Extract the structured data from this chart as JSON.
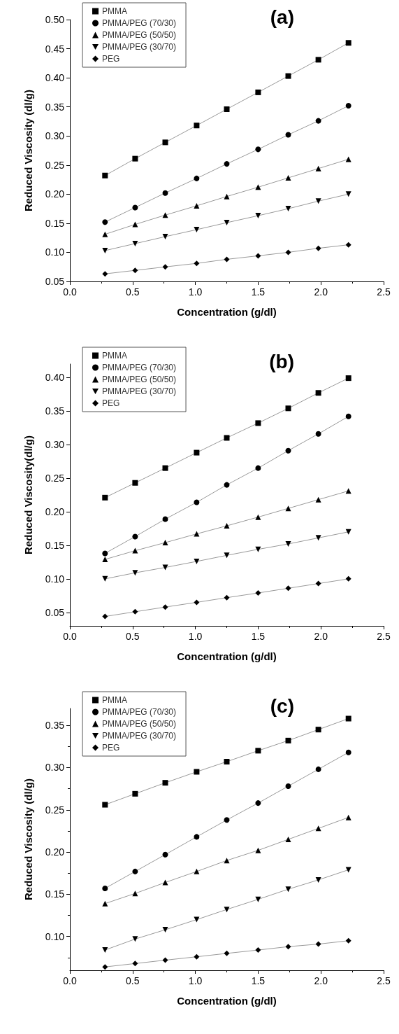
{
  "chart_data": [
    {
      "type": "line",
      "annotations": [
        "(a)"
      ],
      "xlabel": "Concentration (g/dl)",
      "ylabel": "Reduced Viscosity (dl/g)",
      "xlim": [
        0,
        2.5
      ],
      "xticks": [
        {
          "value": 0,
          "label": "0.0"
        },
        {
          "value": 0.5,
          "label": "0.5"
        },
        {
          "value": 1,
          "label": "1.0"
        },
        {
          "value": 1.5,
          "label": "1.5"
        },
        {
          "value": 2,
          "label": "2.0"
        },
        {
          "value": 2.5,
          "label": "2.5"
        }
      ],
      "ylim": [
        0.05,
        0.5
      ],
      "yticks": [
        {
          "value": 0.05,
          "label": "0.05"
        },
        {
          "value": 0.1,
          "label": "0.10"
        },
        {
          "value": 0.15,
          "label": "0.15"
        },
        {
          "value": 0.2,
          "label": "0.20"
        },
        {
          "value": 0.25,
          "label": "0.25"
        },
        {
          "value": 0.3,
          "label": "0.30"
        },
        {
          "value": 0.35,
          "label": "0.35"
        },
        {
          "value": 0.4,
          "label": "0.40"
        },
        {
          "value": 0.45,
          "label": "0.45"
        },
        {
          "value": 0.5,
          "label": "0.50"
        }
      ],
      "legend": "top left",
      "grid": false,
      "x": [
        0.28,
        0.52,
        0.76,
        1.01,
        1.25,
        1.5,
        1.74,
        1.98,
        2.22
      ],
      "series": [
        {
          "name": "PMMA",
          "color": "#000000",
          "marker": "square",
          "values": [
            0.232,
            0.261,
            0.289,
            0.318,
            0.346,
            0.375,
            0.403,
            0.431,
            0.46
          ]
        },
        {
          "name": "PMMA/PEG (70/30)",
          "color": "#000000",
          "marker": "circle",
          "values": [
            0.152,
            0.177,
            0.202,
            0.227,
            0.252,
            0.277,
            0.302,
            0.326,
            0.352
          ]
        },
        {
          "name": "PMMA/PEG (50/50)",
          "color": "#000000",
          "marker": "triangle",
          "values": [
            0.131,
            0.148,
            0.164,
            0.18,
            0.196,
            0.212,
            0.228,
            0.244,
            0.26
          ]
        },
        {
          "name": "PMMA/PEG (30/70)",
          "color": "#000000",
          "marker": "triangle-down",
          "values": [
            0.103,
            0.115,
            0.127,
            0.139,
            0.151,
            0.163,
            0.175,
            0.188,
            0.2
          ]
        },
        {
          "name": "PEG",
          "color": "#000000",
          "marker": "diamond",
          "values": [
            0.063,
            0.069,
            0.075,
            0.081,
            0.088,
            0.094,
            0.1,
            0.107,
            0.113
          ]
        }
      ]
    },
    {
      "type": "line",
      "annotations": [
        "(b)"
      ],
      "xlabel": "Concentration (g/dl)",
      "ylabel": "Reduced Viscosity(dl/g)",
      "xlim": [
        0,
        2.5
      ],
      "xticks": [
        {
          "value": 0,
          "label": "0.0"
        },
        {
          "value": 0.5,
          "label": "0.5"
        },
        {
          "value": 1,
          "label": "1.0"
        },
        {
          "value": 1.5,
          "label": "1.5"
        },
        {
          "value": 2,
          "label": "2.0"
        },
        {
          "value": 2.5,
          "label": "2.5"
        }
      ],
      "ylim": [
        0.03,
        0.42
      ],
      "yticks": [
        {
          "value": 0.05,
          "label": "0.05"
        },
        {
          "value": 0.1,
          "label": "0.10"
        },
        {
          "value": 0.15,
          "label": "0.15"
        },
        {
          "value": 0.2,
          "label": "0.20"
        },
        {
          "value": 0.25,
          "label": "0.25"
        },
        {
          "value": 0.3,
          "label": "0.30"
        },
        {
          "value": 0.35,
          "label": "0.35"
        },
        {
          "value": 0.4,
          "label": "0.40"
        }
      ],
      "legend": "top left",
      "grid": false,
      "x": [
        0.28,
        0.52,
        0.76,
        1.01,
        1.25,
        1.5,
        1.74,
        1.98,
        2.22
      ],
      "series": [
        {
          "name": "PMMA",
          "color": "#000000",
          "marker": "square",
          "values": [
            0.221,
            0.243,
            0.265,
            0.288,
            0.31,
            0.332,
            0.354,
            0.377,
            0.399
          ]
        },
        {
          "name": "PMMA/PEG (70/30)",
          "color": "#000000",
          "marker": "circle",
          "values": [
            0.138,
            0.163,
            0.189,
            0.214,
            0.24,
            0.265,
            0.291,
            0.316,
            0.342
          ]
        },
        {
          "name": "PMMA/PEG (50/50)",
          "color": "#000000",
          "marker": "triangle",
          "values": [
            0.129,
            0.142,
            0.154,
            0.167,
            0.179,
            0.192,
            0.205,
            0.218,
            0.231
          ]
        },
        {
          "name": "PMMA/PEG (30/70)",
          "color": "#000000",
          "marker": "triangle-down",
          "values": [
            0.1,
            0.109,
            0.117,
            0.126,
            0.135,
            0.144,
            0.152,
            0.161,
            0.17
          ]
        },
        {
          "name": "PEG",
          "color": "#000000",
          "marker": "diamond",
          "values": [
            0.044,
            0.051,
            0.058,
            0.065,
            0.072,
            0.079,
            0.086,
            0.093,
            0.1
          ]
        }
      ]
    },
    {
      "type": "line",
      "annotations": [
        "(c)"
      ],
      "xlabel": "Concentration (g/dl)",
      "ylabel": "Reduced Viscosity (dl/g)",
      "xlim": [
        0,
        2.5
      ],
      "xticks": [
        {
          "value": 0,
          "label": "0.0"
        },
        {
          "value": 0.5,
          "label": "0.5"
        },
        {
          "value": 1,
          "label": "1.0"
        },
        {
          "value": 1.5,
          "label": "1.5"
        },
        {
          "value": 2,
          "label": "2.0"
        },
        {
          "value": 2.5,
          "label": "2.5"
        }
      ],
      "ylim": [
        0.06,
        0.37
      ],
      "yticks": [
        {
          "value": 0.1,
          "label": "0.10"
        },
        {
          "value": 0.15,
          "label": "0.15"
        },
        {
          "value": 0.2,
          "label": "0.20"
        },
        {
          "value": 0.25,
          "label": "0.25"
        },
        {
          "value": 0.3,
          "label": "0.30"
        },
        {
          "value": 0.35,
          "label": "0.35"
        }
      ],
      "legend": "top left",
      "grid": false,
      "x": [
        0.28,
        0.52,
        0.76,
        1.01,
        1.25,
        1.5,
        1.74,
        1.98,
        2.22
      ],
      "series": [
        {
          "name": "PMMA",
          "color": "#000000",
          "marker": "square",
          "values": [
            0.256,
            0.269,
            0.282,
            0.295,
            0.307,
            0.32,
            0.332,
            0.345,
            0.358
          ]
        },
        {
          "name": "PMMA/PEG (70/30)",
          "color": "#000000",
          "marker": "circle",
          "values": [
            0.157,
            0.177,
            0.197,
            0.218,
            0.238,
            0.258,
            0.278,
            0.298,
            0.318
          ]
        },
        {
          "name": "PMMA/PEG (50/50)",
          "color": "#000000",
          "marker": "triangle",
          "values": [
            0.139,
            0.151,
            0.164,
            0.177,
            0.19,
            0.202,
            0.215,
            0.228,
            0.241
          ]
        },
        {
          "name": "PMMA/PEG (30/70)",
          "color": "#000000",
          "marker": "triangle-down",
          "values": [
            0.084,
            0.097,
            0.108,
            0.12,
            0.132,
            0.144,
            0.156,
            0.167,
            0.179
          ]
        },
        {
          "name": "PEG",
          "color": "#000000",
          "marker": "diamond",
          "values": [
            0.064,
            0.068,
            0.072,
            0.076,
            0.08,
            0.084,
            0.088,
            0.091,
            0.095
          ]
        }
      ]
    }
  ]
}
